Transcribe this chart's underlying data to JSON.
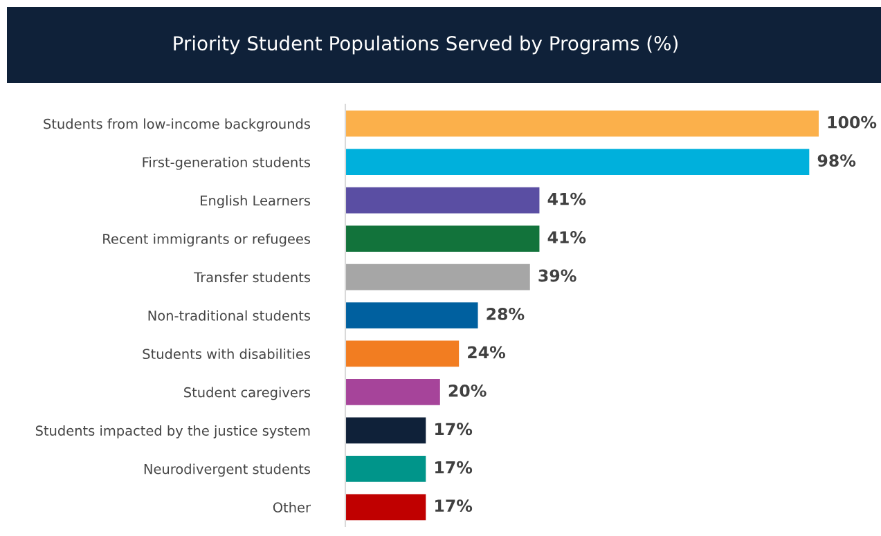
{
  "chart_data": {
    "type": "bar",
    "orientation": "horizontal",
    "title": "Priority Student Populations Served by Programs (%)",
    "categories": [
      "Students from low-income backgrounds",
      "First-generation students",
      "English Learners",
      "Recent immigrants or refugees",
      "Transfer students",
      "Non-traditional students",
      "Students with disabilities",
      "Student caregivers",
      "Students impacted by the justice system",
      "Neurodivergent students",
      "Other"
    ],
    "values": [
      100,
      98,
      41,
      41,
      39,
      28,
      24,
      20,
      17,
      17,
      17
    ],
    "colors": [
      "#fbb04b",
      "#00b0dc",
      "#5a4ea3",
      "#12733b",
      "#a6a6a6",
      "#00609f",
      "#f27d21",
      "#a6449a",
      "#0f2139",
      "#00958a",
      "#c00000"
    ],
    "value_labels": [
      "100%",
      "98%",
      "41%",
      "41%",
      "39%",
      "28%",
      "24%",
      "20%",
      "17%",
      "17%",
      "17%"
    ],
    "xlim": [
      0,
      100
    ],
    "grid": false,
    "legend": false
  }
}
